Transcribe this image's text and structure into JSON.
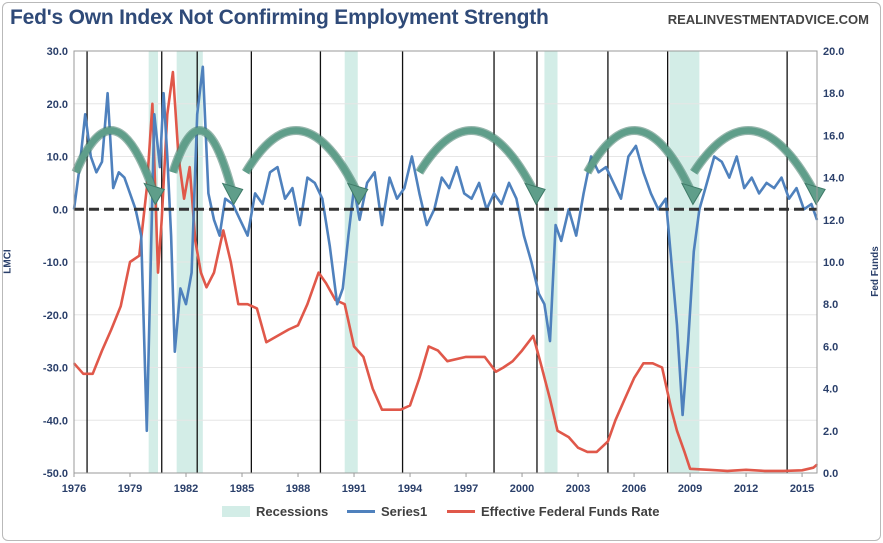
{
  "header": {
    "title": "Fed's Own Index Not Confirming Employment Strength",
    "source": "REALINVESTMENTADVICE.COM"
  },
  "legend": {
    "recessions": "Recessions",
    "series1": "Series1",
    "fedfunds": "Effective Federal Funds Rate"
  },
  "colors": {
    "lmci": "#4f81bd",
    "fedfunds": "#e0584a",
    "recession": "#d3ede7",
    "zero_line": "#333333",
    "arrow": "#5f9e8a",
    "vline": "#111111"
  },
  "chart_data": {
    "type": "line",
    "title": "Fed's Own Index Not Confirming Employment Strength",
    "ylabel_left": "LMCI",
    "ylabel_right": "Fed Funds",
    "ylim_left": [
      -50,
      30
    ],
    "ylim_right": [
      0,
      20
    ],
    "xlim": [
      1976.0,
      2015.8
    ],
    "x_ticks": [
      "1976",
      "1979",
      "1982",
      "1985",
      "1988",
      "1991",
      "1994",
      "1997",
      "2000",
      "2003",
      "2006",
      "2009",
      "2012",
      "2015"
    ],
    "y_ticks_left": [
      "30.0",
      "20.0",
      "10.0",
      "0.0",
      "-10.0",
      "-20.0",
      "-30.0",
      "-40.0",
      "-50.0"
    ],
    "y_ticks_right": [
      "20.0",
      "18.0",
      "16.0",
      "14.0",
      "12.0",
      "10.0",
      "8.0",
      "6.0",
      "4.0",
      "2.0",
      "0.0"
    ],
    "legend_position": "bottom",
    "recessions": [
      [
        1980.0,
        1980.5
      ],
      [
        1981.5,
        1982.9
      ],
      [
        1990.5,
        1991.2
      ],
      [
        2001.2,
        2001.9
      ],
      [
        2007.9,
        2009.5
      ]
    ],
    "vertical_markers": [
      1976.7,
      1980.7,
      1982.6,
      1985.5,
      1989.2,
      1993.6,
      1998.5,
      2000.8,
      2004.6,
      2007.8,
      2014.2
    ],
    "arrows": [
      [
        1976.1,
        1980.3
      ],
      [
        1981.3,
        1984.5
      ],
      [
        1985.2,
        1991.2
      ],
      [
        1994.5,
        2000.7
      ],
      [
        2003.5,
        2009.1
      ],
      [
        2009.2,
        2015.7
      ]
    ],
    "series": [
      {
        "name": "Series1",
        "axis": "left",
        "x": [
          1976.0,
          1976.3,
          1976.6,
          1976.9,
          1977.2,
          1977.5,
          1977.8,
          1978.1,
          1978.4,
          1978.7,
          1979.0,
          1979.3,
          1979.6,
          1979.9,
          1980.1,
          1980.3,
          1980.6,
          1980.8,
          1981.0,
          1981.2,
          1981.4,
          1981.7,
          1982.0,
          1982.3,
          1982.6,
          1982.9,
          1983.2,
          1983.5,
          1983.8,
          1984.1,
          1984.5,
          1984.9,
          1985.3,
          1985.7,
          1986.1,
          1986.5,
          1986.9,
          1987.3,
          1987.7,
          1988.1,
          1988.5,
          1988.9,
          1989.3,
          1989.7,
          1990.1,
          1990.4,
          1990.7,
          1991.0,
          1991.3,
          1991.7,
          1992.1,
          1992.5,
          1992.9,
          1993.3,
          1993.7,
          1994.1,
          1994.5,
          1994.9,
          1995.3,
          1995.7,
          1996.1,
          1996.5,
          1996.9,
          1997.3,
          1997.7,
          1998.1,
          1998.5,
          1998.9,
          1999.3,
          1999.7,
          2000.1,
          2000.5,
          2000.9,
          2001.2,
          2001.5,
          2001.8,
          2002.1,
          2002.5,
          2002.9,
          2003.3,
          2003.7,
          2004.1,
          2004.5,
          2004.9,
          2005.3,
          2005.7,
          2006.1,
          2006.5,
          2006.9,
          2007.3,
          2007.7,
          2008.0,
          2008.3,
          2008.6,
          2008.9,
          2009.2,
          2009.5,
          2009.9,
          2010.3,
          2010.7,
          2011.1,
          2011.5,
          2011.9,
          2012.3,
          2012.7,
          2013.1,
          2013.5,
          2013.9,
          2014.3,
          2014.7,
          2015.1,
          2015.5,
          2015.8
        ],
        "values": [
          0.0,
          8.0,
          18.0,
          10.0,
          7.0,
          9.0,
          22.0,
          4.0,
          7.0,
          6.0,
          3.0,
          0.0,
          -5.0,
          -42.0,
          -12.0,
          18.0,
          8.0,
          22.0,
          10.0,
          -5.0,
          -27.0,
          -15.0,
          -18.0,
          -12.0,
          18.0,
          27.0,
          3.0,
          -2.0,
          -5.0,
          2.0,
          1.0,
          -2.0,
          -5.0,
          3.0,
          1.0,
          7.0,
          8.0,
          2.0,
          4.0,
          -3.0,
          6.0,
          5.0,
          2.0,
          -7.0,
          -18.0,
          -15.0,
          -5.0,
          4.0,
          -2.0,
          5.0,
          7.0,
          -3.0,
          6.0,
          2.0,
          4.0,
          10.0,
          3.0,
          -3.0,
          0.0,
          6.0,
          4.0,
          8.0,
          3.0,
          2.0,
          5.0,
          0.0,
          3.0,
          1.0,
          5.0,
          2.0,
          -5.0,
          -10.0,
          -16.0,
          -18.0,
          -25.0,
          -3.0,
          -6.0,
          0.0,
          -5.0,
          3.0,
          10.0,
          7.0,
          8.0,
          5.0,
          2.0,
          10.0,
          12.0,
          7.0,
          3.0,
          0.0,
          2.0,
          -10.0,
          -22.0,
          -39.0,
          -25.0,
          -8.0,
          0.0,
          5.0,
          10.0,
          9.0,
          6.0,
          10.0,
          4.0,
          6.0,
          3.0,
          5.0,
          4.0,
          6.0,
          2.0,
          4.0,
          0.0,
          1.0,
          -2.0
        ]
      },
      {
        "name": "Effective Federal Funds Rate",
        "axis": "right",
        "x": [
          1976.0,
          1976.5,
          1977.0,
          1977.5,
          1978.0,
          1978.5,
          1979.0,
          1979.5,
          1979.9,
          1980.2,
          1980.5,
          1980.7,
          1981.0,
          1981.3,
          1981.6,
          1981.9,
          1982.2,
          1982.5,
          1982.8,
          1983.1,
          1983.5,
          1984.0,
          1984.4,
          1984.8,
          1985.3,
          1985.8,
          1986.3,
          1986.9,
          1987.5,
          1988.0,
          1988.5,
          1989.1,
          1989.5,
          1990.0,
          1990.5,
          1991.0,
          1991.5,
          1992.0,
          1992.5,
          1993.0,
          1993.5,
          1994.0,
          1994.5,
          1995.0,
          1995.5,
          1996.0,
          1997.0,
          1998.0,
          1998.6,
          1999.0,
          1999.5,
          2000.0,
          2000.6,
          2001.0,
          2001.5,
          2001.9,
          2002.5,
          2003.0,
          2003.5,
          2004.0,
          2004.6,
          2005.0,
          2005.5,
          2006.0,
          2006.5,
          2007.0,
          2007.5,
          2008.0,
          2008.3,
          2008.7,
          2009.0,
          2010.0,
          2011.0,
          2012.0,
          2013.0,
          2014.0,
          2015.0,
          2015.6,
          2015.8
        ],
        "values": [
          5.2,
          4.7,
          4.7,
          5.8,
          6.8,
          7.9,
          10.0,
          10.3,
          13.5,
          17.5,
          9.5,
          12.0,
          17.0,
          19.0,
          15.0,
          13.0,
          14.5,
          11.0,
          9.5,
          8.8,
          9.5,
          11.5,
          10.0,
          8.0,
          8.0,
          7.8,
          6.2,
          6.5,
          6.8,
          7.0,
          8.0,
          9.5,
          9.0,
          8.2,
          8.0,
          6.0,
          5.5,
          4.0,
          3.0,
          3.0,
          3.0,
          3.2,
          4.5,
          6.0,
          5.8,
          5.3,
          5.5,
          5.5,
          4.8,
          5.0,
          5.3,
          5.8,
          6.5,
          5.2,
          3.5,
          2.0,
          1.7,
          1.2,
          1.0,
          1.0,
          1.5,
          2.5,
          3.5,
          4.5,
          5.2,
          5.2,
          5.0,
          3.0,
          2.0,
          1.0,
          0.2,
          0.15,
          0.1,
          0.15,
          0.1,
          0.1,
          0.13,
          0.25,
          0.4
        ]
      }
    ]
  }
}
